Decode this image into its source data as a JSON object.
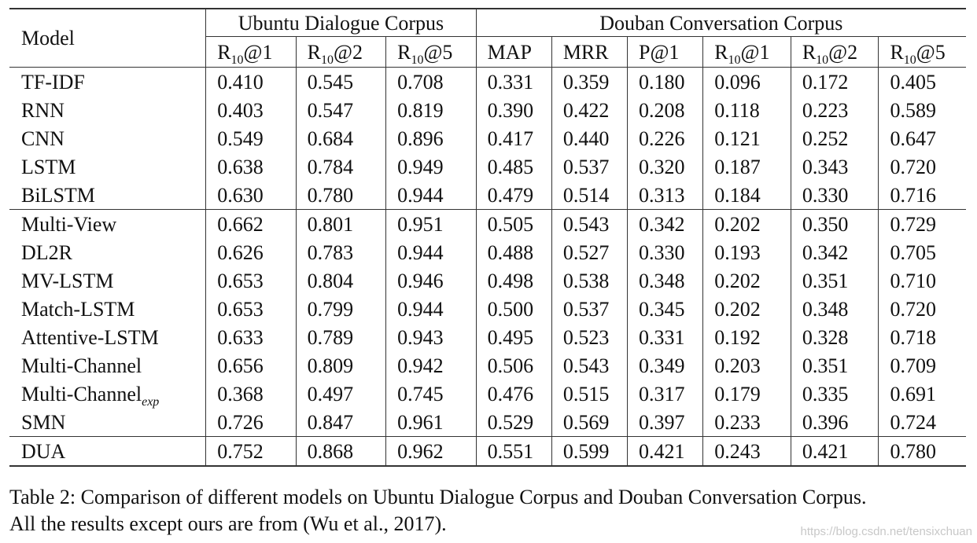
{
  "table": {
    "model_header": "Model",
    "groups": [
      {
        "name": "Ubuntu Dialogue Corpus"
      },
      {
        "name": "Douban Conversation Corpus"
      }
    ],
    "metrics": [
      {
        "base": "R",
        "sub": "10",
        "suffix": "@1"
      },
      {
        "base": "R",
        "sub": "10",
        "suffix": "@2"
      },
      {
        "base": "R",
        "sub": "10",
        "suffix": "@5"
      },
      {
        "base": "MAP",
        "sub": "",
        "suffix": ""
      },
      {
        "base": "MRR",
        "sub": "",
        "suffix": ""
      },
      {
        "base": "P@1",
        "sub": "",
        "suffix": ""
      },
      {
        "base": "R",
        "sub": "10",
        "suffix": "@1"
      },
      {
        "base": "R",
        "sub": "10",
        "suffix": "@2"
      },
      {
        "base": "R",
        "sub": "10",
        "suffix": "@5"
      }
    ],
    "rows": [
      {
        "model": "TF-IDF",
        "sub": "",
        "values": [
          "0.410",
          "0.545",
          "0.708",
          "0.331",
          "0.359",
          "0.180",
          "0.096",
          "0.172",
          "0.405"
        ]
      },
      {
        "model": "RNN",
        "sub": "",
        "values": [
          "0.403",
          "0.547",
          "0.819",
          "0.390",
          "0.422",
          "0.208",
          "0.118",
          "0.223",
          "0.589"
        ]
      },
      {
        "model": "CNN",
        "sub": "",
        "values": [
          "0.549",
          "0.684",
          "0.896",
          "0.417",
          "0.440",
          "0.226",
          "0.121",
          "0.252",
          "0.647"
        ]
      },
      {
        "model": "LSTM",
        "sub": "",
        "values": [
          "0.638",
          "0.784",
          "0.949",
          "0.485",
          "0.537",
          "0.320",
          "0.187",
          "0.343",
          "0.720"
        ]
      },
      {
        "model": "BiLSTM",
        "sub": "",
        "values": [
          "0.630",
          "0.780",
          "0.944",
          "0.479",
          "0.514",
          "0.313",
          "0.184",
          "0.330",
          "0.716"
        ]
      },
      {
        "model": "Multi-View",
        "sub": "",
        "values": [
          "0.662",
          "0.801",
          "0.951",
          "0.505",
          "0.543",
          "0.342",
          "0.202",
          "0.350",
          "0.729"
        ]
      },
      {
        "model": "DL2R",
        "sub": "",
        "values": [
          "0.626",
          "0.783",
          "0.944",
          "0.488",
          "0.527",
          "0.330",
          "0.193",
          "0.342",
          "0.705"
        ]
      },
      {
        "model": "MV-LSTM",
        "sub": "",
        "values": [
          "0.653",
          "0.804",
          "0.946",
          "0.498",
          "0.538",
          "0.348",
          "0.202",
          "0.351",
          "0.710"
        ]
      },
      {
        "model": "Match-LSTM",
        "sub": "",
        "values": [
          "0.653",
          "0.799",
          "0.944",
          "0.500",
          "0.537",
          "0.345",
          "0.202",
          "0.348",
          "0.720"
        ]
      },
      {
        "model": "Attentive-LSTM",
        "sub": "",
        "values": [
          "0.633",
          "0.789",
          "0.943",
          "0.495",
          "0.523",
          "0.331",
          "0.192",
          "0.328",
          "0.718"
        ]
      },
      {
        "model": "Multi-Channel",
        "sub": "",
        "values": [
          "0.656",
          "0.809",
          "0.942",
          "0.506",
          "0.543",
          "0.349",
          "0.203",
          "0.351",
          "0.709"
        ]
      },
      {
        "model": "Multi-Channel",
        "sub": "exp",
        "values": [
          "0.368",
          "0.497",
          "0.745",
          "0.476",
          "0.515",
          "0.317",
          "0.179",
          "0.335",
          "0.691"
        ]
      },
      {
        "model": "SMN",
        "sub": "",
        "values": [
          "0.726",
          "0.847",
          "0.961",
          "0.529",
          "0.569",
          "0.397",
          "0.233",
          "0.396",
          "0.724"
        ]
      },
      {
        "model": "DUA",
        "sub": "",
        "values": [
          "0.752",
          "0.868",
          "0.962",
          "0.551",
          "0.599",
          "0.421",
          "0.243",
          "0.421",
          "0.780"
        ],
        "bold": true
      }
    ]
  },
  "caption": {
    "line1": "Table 2: Comparison of different models on Ubuntu Dialogue Corpus and Douban Conversation Corpus.",
    "line2": "All the results except ours are from (Wu et al., 2017)."
  },
  "watermark": "https://blog.csdn.net/tensixchuan"
}
